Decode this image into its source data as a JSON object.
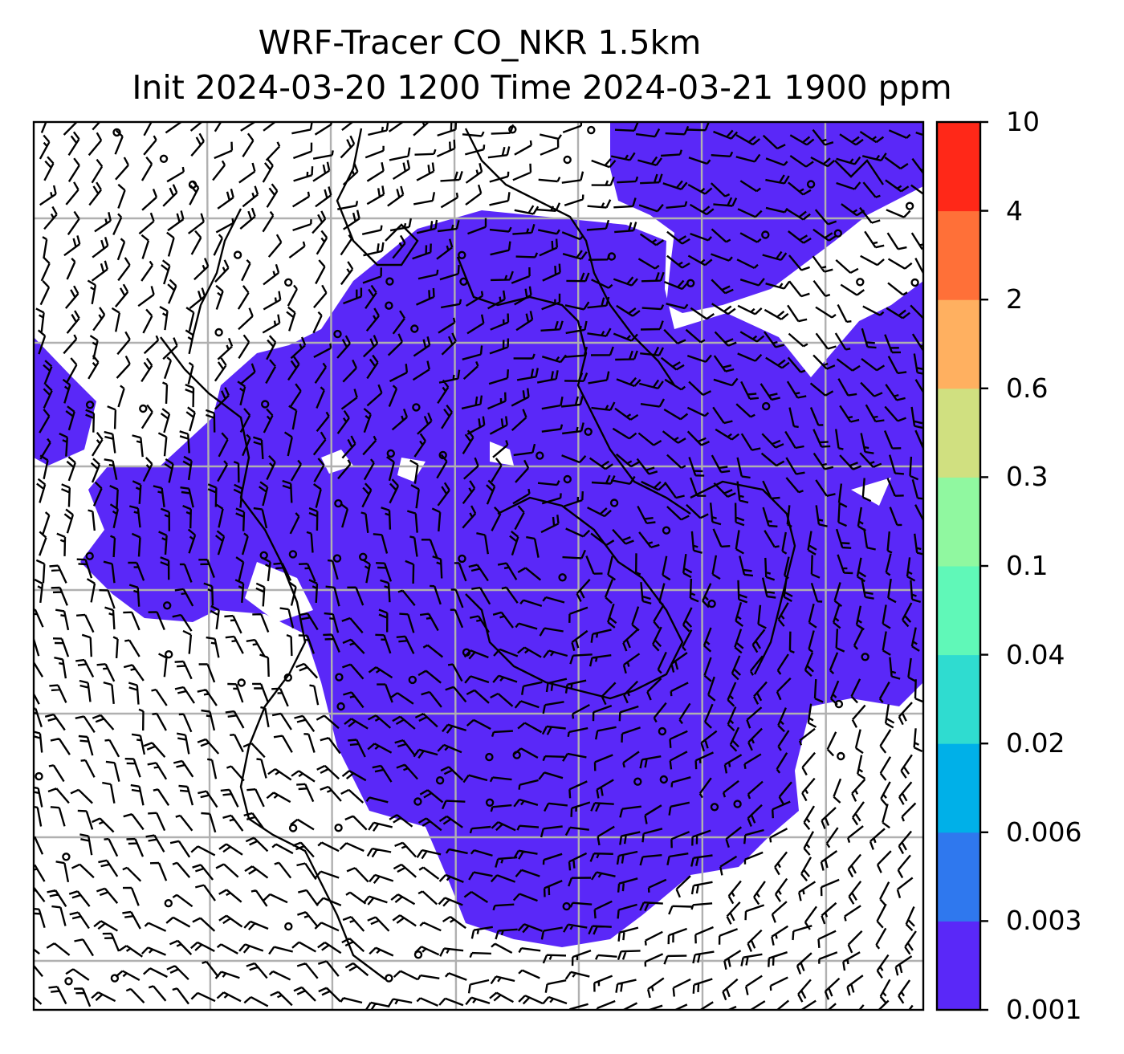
{
  "title": {
    "line1": "WRF-Tracer CO_NKR 1.5km",
    "line2": "Init 2024-03-20 1200 Time 2024-03-21 1900 ppm"
  },
  "colorbar": {
    "levels": [
      "0.001",
      "0.003",
      "0.006",
      "0.02",
      "0.04",
      "0.1",
      "0.3",
      "0.6",
      "2",
      "4",
      "10"
    ],
    "colors": [
      "#5a28f8",
      "#2f78ee",
      "#00b0e8",
      "#2fdcd0",
      "#60f8b8",
      "#90f8a0",
      "#d0e080",
      "#ffb060",
      "#ff7038",
      "#ff2818"
    ]
  },
  "map": {
    "tracer_color": "#5a28f8",
    "gridline_color": "#b0b0b0",
    "frame_color": "#000000"
  }
}
